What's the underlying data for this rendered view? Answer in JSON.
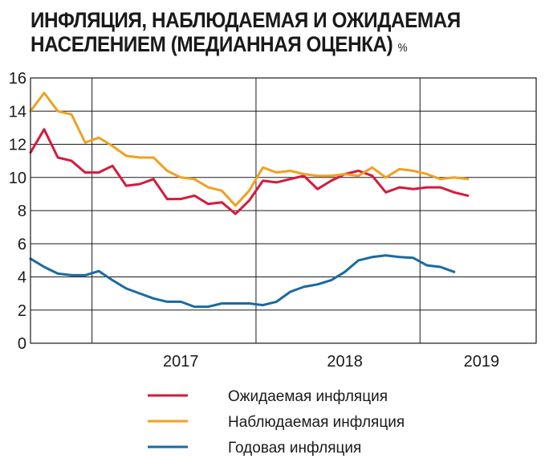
{
  "title": "ИНФЛЯЦИЯ, НАБЛЮДАЕМАЯ И ОЖИДАЕМАЯ НАСЕЛЕНИЕМ (МЕДИАННАЯ ОЦЕНКА)",
  "title_unit": "%",
  "chart_data": {
    "type": "line",
    "title": "ИНФЛЯЦИЯ, НАБЛЮДАЕМАЯ И ОЖИДАЕМАЯ НАСЕЛЕНИЕМ (МЕДИАННАЯ ОЦЕНКА)",
    "ylabel": "%",
    "ylim": [
      0,
      16
    ],
    "yticks": [
      0,
      2,
      4,
      6,
      8,
      10,
      12,
      14,
      16
    ],
    "xlim": [
      "2016-08",
      "2019-09"
    ],
    "x_year_labels": [
      "2017",
      "2018",
      "2019"
    ],
    "grid": true,
    "legend_position": "bottom",
    "x": [
      "2016-08",
      "2016-09",
      "2016-10",
      "2016-11",
      "2016-12",
      "2017-01",
      "2017-02",
      "2017-03",
      "2017-04",
      "2017-05",
      "2017-06",
      "2017-07",
      "2017-08",
      "2017-09",
      "2017-10",
      "2017-11",
      "2017-12",
      "2018-01",
      "2018-02",
      "2018-03",
      "2018-04",
      "2018-05",
      "2018-06",
      "2018-07",
      "2018-08",
      "2018-09",
      "2018-10",
      "2018-11",
      "2018-12",
      "2019-01",
      "2019-02",
      "2019-03",
      "2019-04",
      "2019-05",
      "2019-06",
      "2019-07",
      "2019-08",
      "2019-09"
    ],
    "series": [
      {
        "name": "Ожидаемая инфляция",
        "color": "#d7193c",
        "values": [
          11.5,
          12.9,
          11.2,
          11.0,
          10.3,
          10.3,
          10.7,
          9.5,
          9.6,
          9.9,
          8.7,
          8.7,
          8.9,
          8.4,
          8.5,
          7.8,
          8.6,
          9.8,
          9.7,
          9.9,
          10.1,
          9.3,
          9.8,
          10.2,
          10.4,
          10.1,
          9.1,
          9.4,
          9.3,
          9.4,
          9.4,
          9.1,
          8.9,
          null,
          null,
          null,
          null,
          null
        ]
      },
      {
        "name": "Наблюдаемая  инфляция",
        "color": "#f0a020",
        "values": [
          14.0,
          15.1,
          14.0,
          13.8,
          12.1,
          12.4,
          11.9,
          11.3,
          11.2,
          11.2,
          10.4,
          10.0,
          9.9,
          9.4,
          9.2,
          8.3,
          9.2,
          10.6,
          10.3,
          10.4,
          10.2,
          10.1,
          10.1,
          10.2,
          10.1,
          10.6,
          10.0,
          10.5,
          10.4,
          10.2,
          9.9,
          10.0,
          9.9,
          null,
          null,
          null,
          null,
          null
        ]
      },
      {
        "name": "Годовая инфляция",
        "color": "#1a6aa0",
        "values": [
          5.1,
          4.6,
          4.2,
          4.1,
          4.1,
          4.35,
          3.8,
          3.3,
          3.0,
          2.7,
          2.5,
          2.5,
          2.2,
          2.2,
          2.4,
          2.4,
          2.4,
          2.3,
          2.5,
          3.1,
          3.4,
          3.55,
          3.8,
          4.3,
          5.0,
          5.2,
          5.3,
          5.2,
          5.15,
          4.7,
          4.6,
          4.3,
          null,
          null,
          null,
          null,
          null,
          null
        ]
      }
    ]
  }
}
